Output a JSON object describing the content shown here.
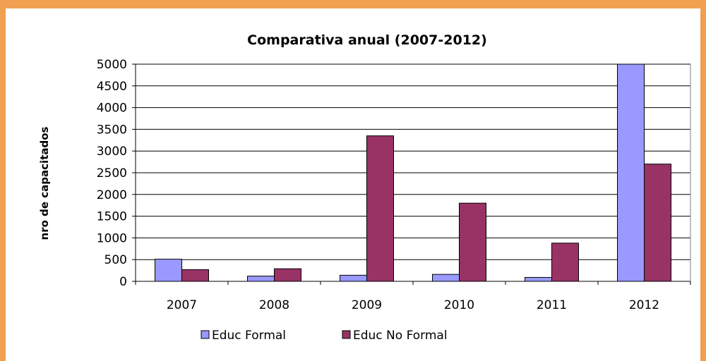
{
  "chart_data": {
    "type": "bar",
    "title": "Comparativa anual (2007-2012)",
    "xlabel": "",
    "ylabel": "nro de capacitados",
    "categories": [
      "2007",
      "2008",
      "2009",
      "2010",
      "2011",
      "2012"
    ],
    "series": [
      {
        "name": "Educ Formal",
        "color": "#9999ff",
        "values": [
          510,
          120,
          140,
          160,
          90,
          5000
        ]
      },
      {
        "name": "Educ No Formal",
        "color": "#993366",
        "values": [
          270,
          290,
          3350,
          1800,
          880,
          2700
        ]
      }
    ],
    "ylim": [
      0,
      5000
    ],
    "yticks": [
      0,
      500,
      1000,
      1500,
      2000,
      2500,
      3000,
      3500,
      4000,
      4500,
      5000
    ],
    "grid": true,
    "legend": "bottom"
  }
}
